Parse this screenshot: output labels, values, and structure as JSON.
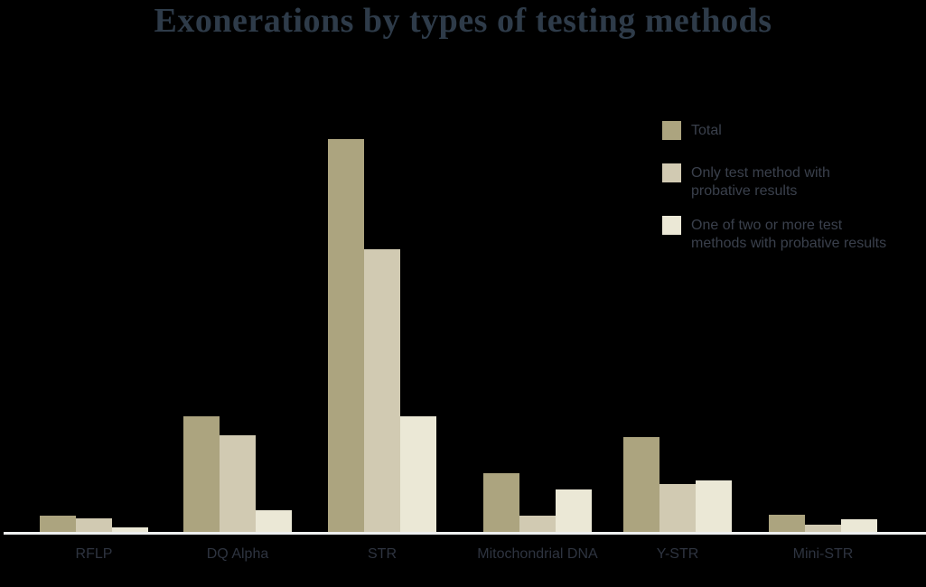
{
  "page": {
    "background_color": "#000000",
    "axis_line_color": "#EEF0F0",
    "title_color": "#2E3B49",
    "x_label_color": "#2E3440",
    "legend_text_color": "#3A404C"
  },
  "title": {
    "text": "Exonerations by types of testing methods"
  },
  "legend": {
    "items": [
      {
        "label": "Total",
        "color": "#ACA47F"
      },
      {
        "label": "Only test method with\nprobative results",
        "color": "#D1CAB2"
      },
      {
        "label": "One of two or more test\nmethods with probative results",
        "color": "#EBE8D6"
      }
    ]
  },
  "chart_data": {
    "type": "bar",
    "title": "Exonerations by types of testing methods",
    "categories": [
      "RFLP",
      "DQ Alpha",
      "STR",
      "Mitochondrial DNA",
      "Y-STR",
      "Mini-STR"
    ],
    "series": [
      {
        "name": "Total",
        "color": "#ACA47F",
        "values": [
          19,
          129,
          436,
          66,
          106,
          20
        ]
      },
      {
        "name": "Only test method with probative results",
        "color": "#D1CAB2",
        "values": [
          16,
          108,
          314,
          19,
          54,
          9
        ]
      },
      {
        "name": "One of two or more test methods with probative results",
        "color": "#EBE8D6",
        "values": [
          6,
          25,
          129,
          48,
          58,
          15
        ]
      }
    ],
    "value_units": "relative bar heights estimated from pixels (chart shows no y-axis or value labels)",
    "xlabel": "",
    "ylabel": "",
    "ylim": [
      0,
      460
    ],
    "y_axis": "hidden",
    "grid": false,
    "legend_position": "top-right"
  }
}
